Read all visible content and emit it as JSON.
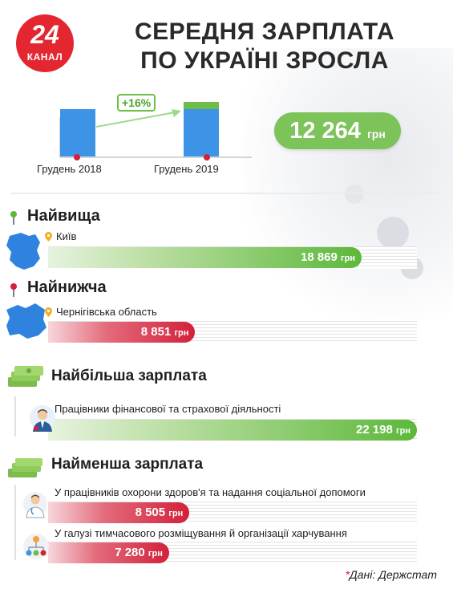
{
  "logo": {
    "number": "24",
    "word": "КАНАЛ"
  },
  "title_line1": "СЕРЕДНЯ ЗАРПЛАТА",
  "title_line2": "ПО УКРАЇНІ ЗРОСЛА",
  "chart_data": [
    {
      "type": "bar",
      "categories": [
        "Грудень 2018",
        "Грудень 2019"
      ],
      "series": [
        {
          "values": [
            1.0,
            1.0
          ]
        },
        {
          "values": [
            0,
            0.16
          ]
        }
      ],
      "annotation": "+16%",
      "callout_value": "12 264",
      "callout_unit": "грн"
    },
    {
      "type": "bar",
      "orientation": "horizontal",
      "unit": "грн",
      "max_value": 22198,
      "groups": [
        {
          "heading": "Найвища",
          "items": [
            {
              "label": "Київ",
              "value": 18869,
              "display": "18 869",
              "color": "#5cb83a"
            }
          ]
        },
        {
          "heading": "Найнижча",
          "items": [
            {
              "label": "Чернігівська область",
              "value": 8851,
              "display": "8 851",
              "color": "#d3203a"
            }
          ]
        },
        {
          "heading": "Найбільша зарплата",
          "items": [
            {
              "label": "Працівники фінансової та страхової діяльності",
              "value": 22198,
              "display": "22 198",
              "color": "#5cb83a"
            }
          ]
        },
        {
          "heading": "Найменша зарплата",
          "items": [
            {
              "label": "У працівників охорони здоров'я та надання соціальної допомоги",
              "value": 8505,
              "display": "8 505",
              "color": "#d3203a"
            },
            {
              "label": "У галузі тимчасового розміщування й організації харчування",
              "value": 7280,
              "display": "7 280",
              "color": "#d3203a"
            }
          ]
        }
      ]
    }
  ],
  "source_star": "*",
  "source_text": "Дані: Держстат",
  "icons": [
    "kyiv-map-icon",
    "chernihiv-map-icon",
    "money-stack-icon",
    "businessman-icon",
    "doctor-icon",
    "people-network-icon",
    "location-pin-icon"
  ]
}
